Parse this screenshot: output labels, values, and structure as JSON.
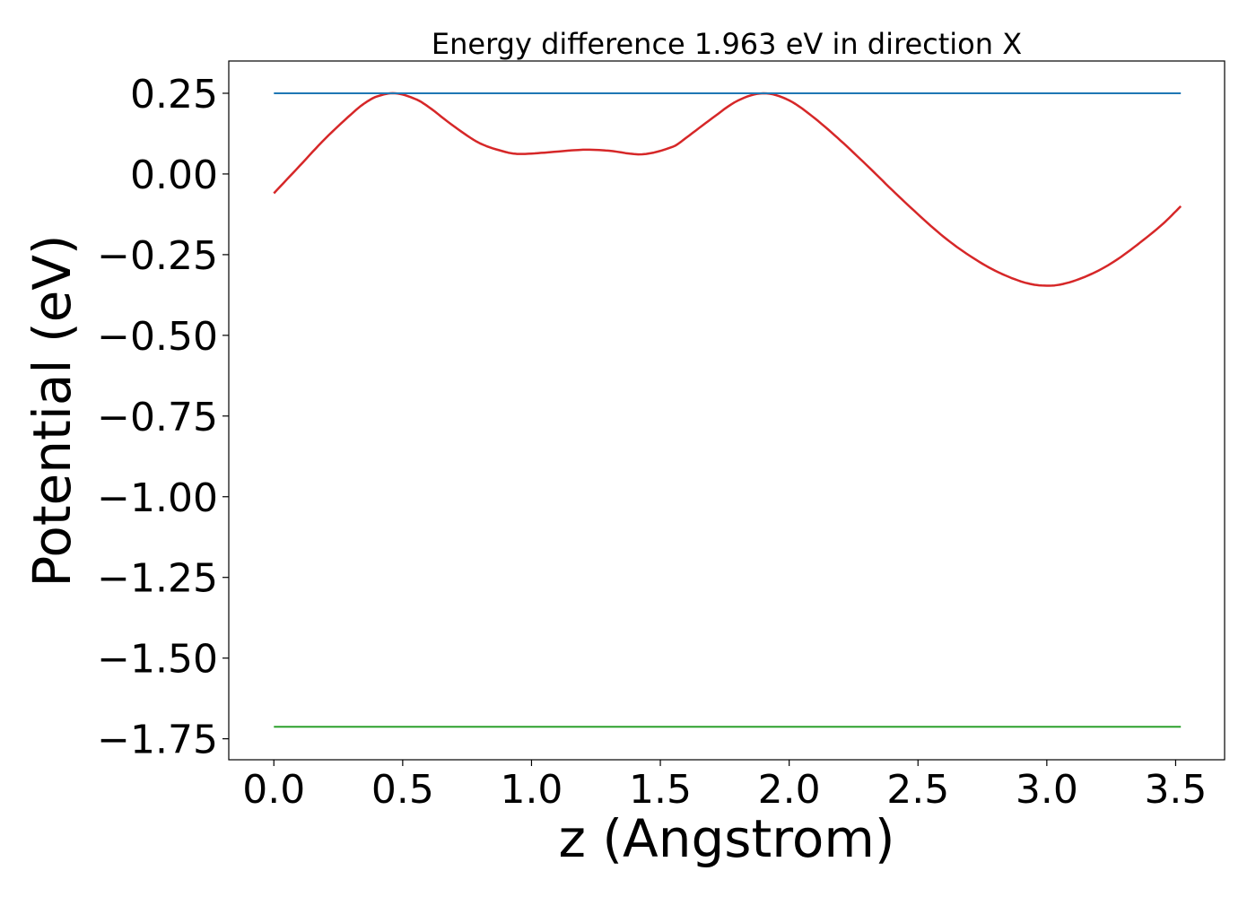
{
  "chart_data": {
    "type": "line",
    "title": "Energy difference 1.963 eV in direction X",
    "xlabel": "z (Angstrom)",
    "ylabel": "Potential (eV)",
    "xlim": [
      -0.175,
      3.69
    ],
    "ylim": [
      -1.815,
      0.35
    ],
    "xticks": [
      {
        "value": 0.0,
        "label": "0.0"
      },
      {
        "value": 0.5,
        "label": "0.5"
      },
      {
        "value": 1.0,
        "label": "1.0"
      },
      {
        "value": 1.5,
        "label": "1.5"
      },
      {
        "value": 2.0,
        "label": "2.0"
      },
      {
        "value": 2.5,
        "label": "2.5"
      },
      {
        "value": 3.0,
        "label": "3.0"
      },
      {
        "value": 3.5,
        "label": "3.5"
      }
    ],
    "yticks": [
      {
        "value": 0.25,
        "label": "0.25"
      },
      {
        "value": 0.0,
        "label": "0.00"
      },
      {
        "value": -0.25,
        "label": "−0.25"
      },
      {
        "value": -0.5,
        "label": "−0.50"
      },
      {
        "value": -0.75,
        "label": "−0.75"
      },
      {
        "value": -1.0,
        "label": "−1.00"
      },
      {
        "value": -1.25,
        "label": "−1.25"
      },
      {
        "value": -1.5,
        "label": "−1.50"
      },
      {
        "value": -1.75,
        "label": "−1.75"
      }
    ],
    "grid": false,
    "legend": "none",
    "series": [
      {
        "color": "#d62728",
        "x": [
          0.0,
          0.1,
          0.2,
          0.3,
          0.35,
          0.4,
          0.47,
          0.55,
          0.6,
          0.7,
          0.8,
          0.9,
          0.95,
          1.05,
          1.2,
          1.3,
          1.43,
          1.55,
          1.6,
          1.7,
          1.8,
          1.9,
          2.0,
          2.1,
          2.2,
          2.3,
          2.4,
          2.5,
          2.6,
          2.7,
          2.8,
          2.9,
          2.97,
          3.05,
          3.15,
          3.25,
          3.35,
          3.45,
          3.52
        ],
        "y": [
          -0.06,
          0.025,
          0.11,
          0.185,
          0.218,
          0.24,
          0.25,
          0.232,
          0.208,
          0.147,
          0.095,
          0.068,
          0.062,
          0.066,
          0.075,
          0.072,
          0.061,
          0.085,
          0.112,
          0.172,
          0.227,
          0.25,
          0.228,
          0.172,
          0.103,
          0.028,
          -0.05,
          -0.125,
          -0.195,
          -0.253,
          -0.3,
          -0.333,
          -0.345,
          -0.343,
          -0.318,
          -0.277,
          -0.22,
          -0.155,
          -0.1
        ]
      },
      {
        "color": "#1f77b4",
        "x": [
          0.0,
          3.52
        ],
        "y": [
          0.25,
          0.25
        ]
      },
      {
        "color": "#2ca02c",
        "x": [
          0.0,
          3.52
        ],
        "y": [
          -1.713,
          -1.713
        ]
      }
    ]
  }
}
